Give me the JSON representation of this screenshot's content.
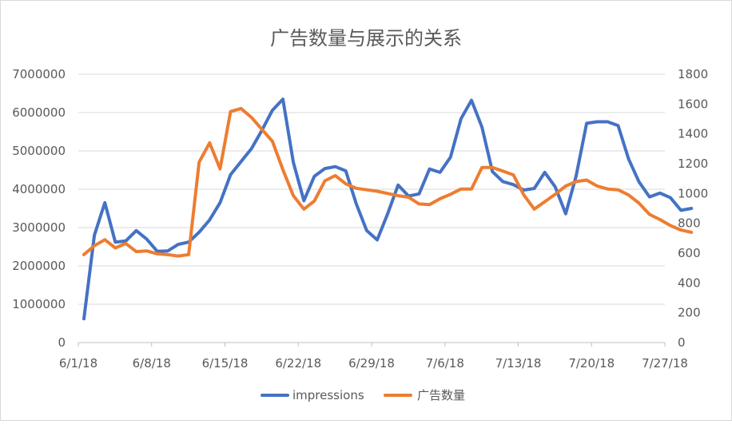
{
  "chart_data": {
    "type": "line",
    "title": "广告数量与展示的关系",
    "xlabel": "",
    "ylabel": "",
    "y2label": "",
    "x_tick_labels": [
      "6/1/18",
      "6/8/18",
      "6/15/18",
      "6/22/18",
      "6/29/18",
      "7/6/18",
      "7/13/18",
      "7/20/18",
      "7/27/18"
    ],
    "y_ticks": [
      "0",
      "1000000",
      "2000000",
      "3000000",
      "4000000",
      "5000000",
      "6000000",
      "7000000"
    ],
    "y2_ticks": [
      "0",
      "200",
      "400",
      "600",
      "800",
      "1000",
      "1200",
      "1400",
      "1600",
      "1800"
    ],
    "ylim": [
      0,
      7000000
    ],
    "y2lim": [
      0,
      1800
    ],
    "legend_position": "bottom",
    "grid": true,
    "series": [
      {
        "name": "impressions",
        "axis": "left",
        "color": "#4472c4",
        "values": [
          620000,
          2800000,
          3650000,
          2620000,
          2650000,
          2920000,
          2700000,
          2380000,
          2390000,
          2560000,
          2620000,
          2880000,
          3200000,
          3650000,
          4380000,
          4720000,
          5060000,
          5540000,
          6060000,
          6350000,
          4700000,
          3700000,
          4340000,
          4540000,
          4590000,
          4480000,
          3620000,
          2920000,
          2680000,
          3360000,
          4110000,
          3820000,
          3880000,
          4530000,
          4440000,
          4840000,
          5840000,
          6320000,
          5620000,
          4460000,
          4200000,
          4120000,
          3980000,
          4020000,
          4440000,
          4060000,
          3360000,
          4350000,
          5720000,
          5760000,
          5760000,
          5660000,
          4790000,
          4190000,
          3800000,
          3900000,
          3780000,
          3450000,
          3500000
        ]
      },
      {
        "name": "广告数量",
        "axis": "right",
        "color": "#ed7d31",
        "values": [
          590,
          650,
          690,
          635,
          665,
          610,
          615,
          595,
          590,
          580,
          590,
          1210,
          1340,
          1165,
          1550,
          1570,
          1510,
          1430,
          1350,
          1160,
          985,
          895,
          950,
          1085,
          1120,
          1065,
          1035,
          1025,
          1015,
          1000,
          985,
          975,
          930,
          925,
          965,
          995,
          1030,
          1030,
          1175,
          1175,
          1150,
          1125,
          990,
          895,
          945,
          995,
          1050,
          1080,
          1090,
          1050,
          1030,
          1025,
          990,
          935,
          860,
          825,
          785,
          755,
          740
        ]
      }
    ]
  }
}
